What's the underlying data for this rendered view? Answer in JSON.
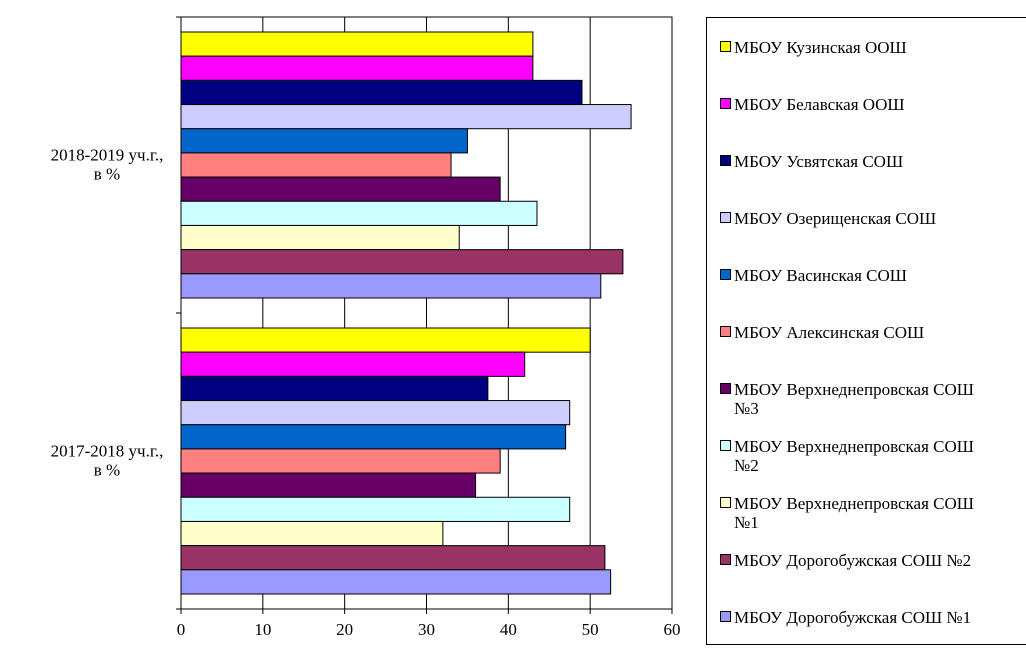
{
  "chart_data": {
    "type": "bar",
    "orientation": "horizontal",
    "categories": [
      "2018-2019 уч.г.,\nв %",
      "2017-2018 уч.г.,\nв %"
    ],
    "x_ticks": [
      "0",
      "10",
      "20",
      "30",
      "40",
      "50",
      "60"
    ],
    "xlim": [
      0,
      60
    ],
    "grid": "vertical",
    "legend_position": "right",
    "series": [
      {
        "name": "МБОУ Кузинская ООШ",
        "color": "#FFFF00",
        "values": [
          43,
          50
        ]
      },
      {
        "name": "МБОУ Белавская ООШ",
        "color": "#FF00FF",
        "values": [
          43,
          42
        ]
      },
      {
        "name": "МБОУ Усвятская СОШ",
        "color": "#000080",
        "values": [
          49,
          37.5
        ]
      },
      {
        "name": "МБОУ Озерищенская СОШ",
        "color": "#CCCCFF",
        "values": [
          55,
          47.5
        ]
      },
      {
        "name": "МБОУ Васинская СОШ",
        "color": "#0066CC",
        "values": [
          35,
          47
        ]
      },
      {
        "name": "МБОУ Алексинская СОШ",
        "color": "#FF8080",
        "values": [
          33,
          39
        ]
      },
      {
        "name": "МБОУ Верхнеднепровская СОШ\n№3",
        "color": "#660066",
        "values": [
          39,
          36
        ]
      },
      {
        "name": "МБОУ Верхнеднепровская СОШ\n№2",
        "color": "#CCFFFF",
        "values": [
          43.5,
          47.5
        ]
      },
      {
        "name": "МБОУ Верхнеднепровская СОШ\n№1",
        "color": "#FFFFCC",
        "values": [
          34,
          32
        ]
      },
      {
        "name": "МБОУ Дорогобужская СОШ №2",
        "color": "#993366",
        "values": [
          54,
          51.8
        ]
      },
      {
        "name": "МБОУ Дорогобужская СОШ №1",
        "color": "#9999FF",
        "values": [
          51.3,
          52.5
        ]
      }
    ]
  }
}
